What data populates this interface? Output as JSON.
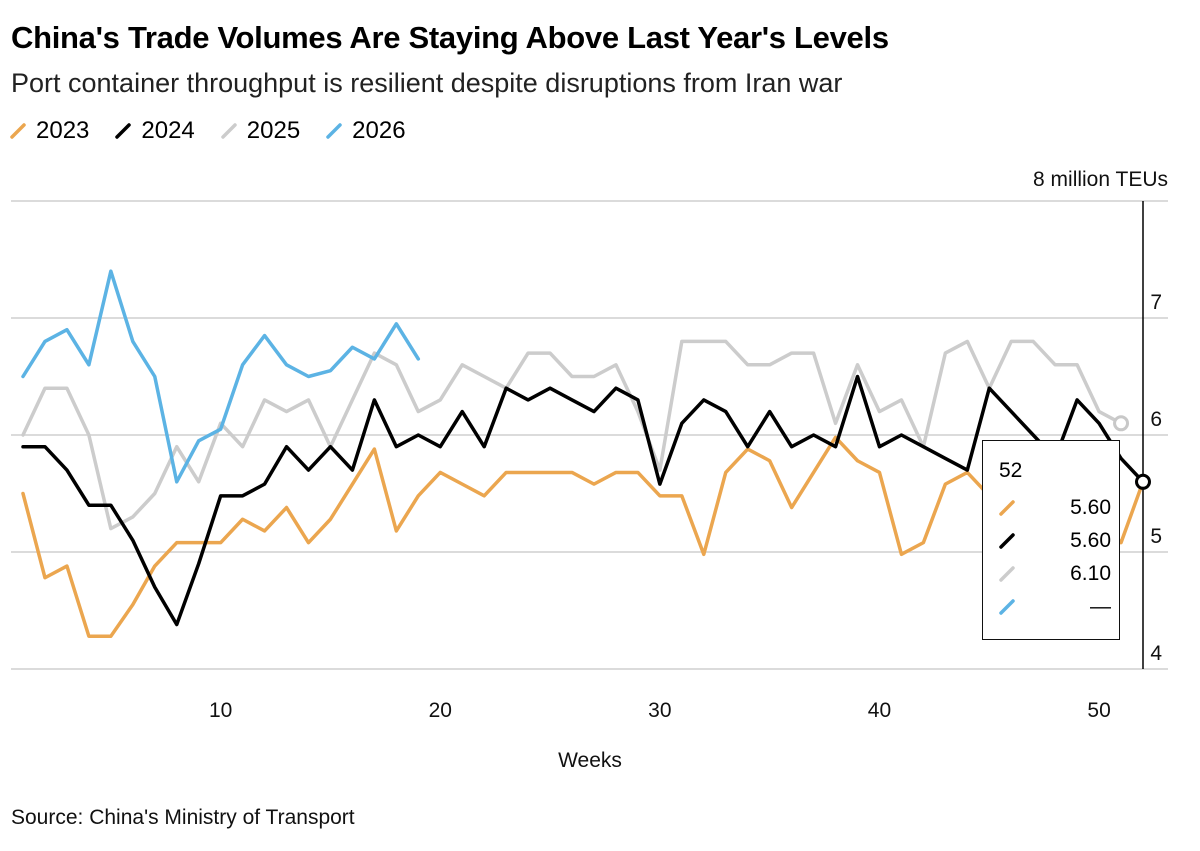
{
  "title": "China's Trade Volumes Are Staying Above Last Year's Levels",
  "subtitle": "Port container throughput is resilient despite disruptions from Iran war",
  "source": "Source: China's Ministry of Transport",
  "colors": {
    "2023": "#eba64f",
    "2024": "#000000",
    "2025": "#cccccc",
    "2026": "#5cb3e4",
    "grid": "#cfcfcf"
  },
  "tooltip": {
    "week": "52",
    "rows": [
      {
        "series": "2023",
        "value": "5.60"
      },
      {
        "series": "2024",
        "value": "5.60"
      },
      {
        "series": "2025",
        "value": "6.10"
      },
      {
        "series": "2026",
        "value": "—"
      }
    ]
  },
  "chart_data": {
    "type": "line",
    "xlabel": "Weeks",
    "ylabel": "",
    "unit_label": "8 million TEUs",
    "xlim": [
      0,
      53
    ],
    "ylim": [
      4,
      8
    ],
    "xticks": [
      10,
      20,
      30,
      40,
      50
    ],
    "yticks": [
      4,
      5,
      6,
      7,
      8
    ],
    "ytick_labels": [
      "4",
      "5",
      "6",
      "7",
      ""
    ],
    "grid": true,
    "legend_position": "top-left",
    "highlight_x": 52,
    "series": [
      {
        "name": "2023",
        "color": "#eba64f",
        "x_start": 1,
        "values": [
          5.5,
          4.78,
          4.88,
          4.28,
          4.28,
          4.55,
          4.88,
          5.08,
          5.08,
          5.08,
          5.28,
          5.18,
          5.38,
          5.08,
          5.28,
          5.58,
          5.88,
          5.18,
          5.48,
          5.68,
          5.58,
          5.48,
          5.68,
          5.68,
          5.68,
          5.68,
          5.58,
          5.68,
          5.68,
          5.48,
          5.48,
          4.98,
          5.68,
          5.88,
          5.78,
          5.38,
          5.68,
          5.98,
          5.78,
          5.68,
          4.98,
          5.08,
          5.58,
          5.68,
          5.48,
          5.48,
          5.48,
          5.58,
          5.58,
          5.28,
          5.08,
          5.6
        ]
      },
      {
        "name": "2024",
        "color": "#000000",
        "x_start": 1,
        "values": [
          5.9,
          5.9,
          5.7,
          5.4,
          5.4,
          5.1,
          4.7,
          4.38,
          4.9,
          5.48,
          5.48,
          5.58,
          5.9,
          5.7,
          5.9,
          5.7,
          6.3,
          5.9,
          6.0,
          5.9,
          6.2,
          5.9,
          6.4,
          6.3,
          6.4,
          6.3,
          6.2,
          6.4,
          6.3,
          5.58,
          6.1,
          6.3,
          6.2,
          5.9,
          6.2,
          5.9,
          6.0,
          5.9,
          6.5,
          5.9,
          6.0,
          5.9,
          5.8,
          5.7,
          6.4,
          6.2,
          6.0,
          5.8,
          6.3,
          6.1,
          5.8,
          5.6
        ]
      },
      {
        "name": "2025",
        "color": "#cccccc",
        "x_start": 1,
        "values": [
          6.0,
          6.4,
          6.4,
          6.0,
          5.2,
          5.3,
          5.5,
          5.9,
          5.6,
          6.1,
          5.9,
          6.3,
          6.2,
          6.3,
          5.9,
          6.3,
          6.7,
          6.6,
          6.2,
          6.3,
          6.6,
          6.5,
          6.4,
          6.7,
          6.7,
          6.5,
          6.5,
          6.6,
          6.2,
          5.7,
          6.8,
          6.8,
          6.8,
          6.6,
          6.6,
          6.7,
          6.7,
          6.1,
          6.6,
          6.2,
          6.3,
          5.9,
          6.7,
          6.8,
          6.4,
          6.8,
          6.8,
          6.6,
          6.6,
          6.2,
          6.1
        ]
      },
      {
        "name": "2026",
        "color": "#5cb3e4",
        "x_start": 1,
        "values": [
          6.5,
          6.8,
          6.9,
          6.6,
          7.4,
          6.8,
          6.5,
          5.6,
          5.95,
          6.05,
          6.6,
          6.85,
          6.6,
          6.5,
          6.55,
          6.75,
          6.65,
          6.95,
          6.65
        ]
      }
    ]
  }
}
